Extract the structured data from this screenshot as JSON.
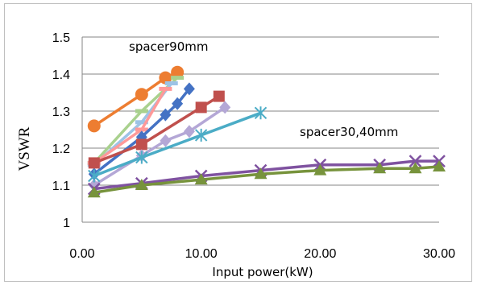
{
  "chart_data": {
    "type": "line",
    "xlabel": "Input power(kW)",
    "ylabel": "VSWR",
    "xlim": [
      0,
      30
    ],
    "ylim": [
      1,
      1.5
    ],
    "x_ticks": [
      "0.00",
      "10.00",
      "20.00",
      "30.00"
    ],
    "y_ticks": [
      "1",
      "1.1",
      "1.2",
      "1.3",
      "1.4",
      "1.5"
    ],
    "grid": "horizontal",
    "annotations": [
      {
        "text": "spacer90mm"
      },
      {
        "text": "spacer30,40mm"
      }
    ],
    "series": [
      {
        "color": "#ed7d31",
        "marker": "circle",
        "x": [
          1,
          5,
          7,
          8
        ],
        "y": [
          1.26,
          1.345,
          1.39,
          1.405
        ]
      },
      {
        "color": "#a9d18e",
        "marker": "dash",
        "x": [
          1,
          5,
          8
        ],
        "y": [
          1.16,
          1.3,
          1.39
        ]
      },
      {
        "color": "#9dc3e6",
        "marker": "dash",
        "x": [
          1,
          5,
          7.5
        ],
        "y": [
          1.155,
          1.27,
          1.375
        ]
      },
      {
        "color": "#ff9999",
        "marker": "dash",
        "x": [
          1,
          5,
          7
        ],
        "y": [
          1.16,
          1.25,
          1.36
        ]
      },
      {
        "color": "#4472c4",
        "marker": "diamond",
        "x": [
          1,
          5,
          7,
          8,
          9
        ],
        "y": [
          1.13,
          1.23,
          1.29,
          1.32,
          1.36
        ]
      },
      {
        "color": "#c0504d",
        "marker": "square",
        "x": [
          1,
          5,
          10,
          11.5
        ],
        "y": [
          1.16,
          1.21,
          1.31,
          1.34
        ]
      },
      {
        "color": "#b4a7d6",
        "marker": "diamond",
        "x": [
          1,
          5,
          7,
          9,
          12
        ],
        "y": [
          1.1,
          1.18,
          1.22,
          1.245,
          1.31
        ]
      },
      {
        "color": "#4bacc6",
        "marker": "asterisk",
        "x": [
          1,
          5,
          10,
          15
        ],
        "y": [
          1.125,
          1.175,
          1.235,
          1.295
        ]
      },
      {
        "color": "#7f52a0",
        "marker": "cross",
        "x": [
          1,
          5,
          10,
          15,
          20,
          25,
          28,
          30
        ],
        "y": [
          1.09,
          1.105,
          1.125,
          1.14,
          1.155,
          1.155,
          1.165,
          1.165
        ]
      },
      {
        "color": "#77933c",
        "marker": "triangle",
        "x": [
          1,
          5,
          10,
          15,
          20,
          25,
          28,
          30
        ],
        "y": [
          1.08,
          1.1,
          1.115,
          1.13,
          1.14,
          1.145,
          1.145,
          1.15
        ]
      }
    ]
  }
}
